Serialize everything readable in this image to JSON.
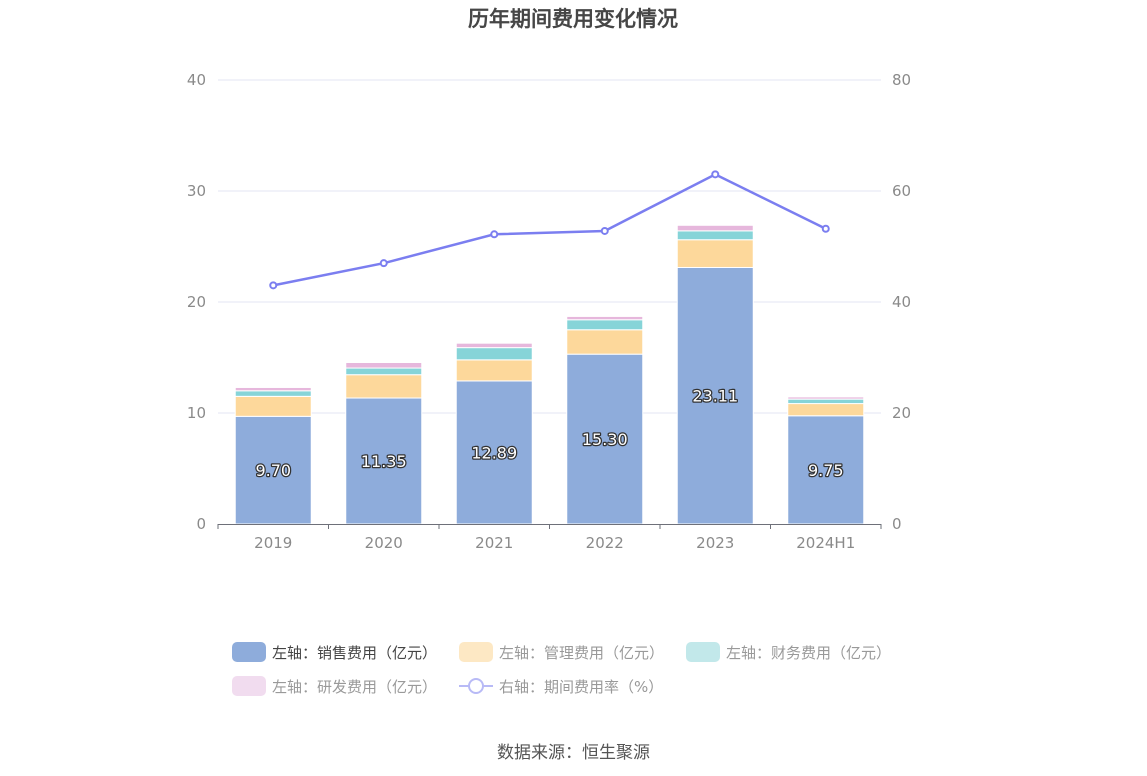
{
  "chart_data": {
    "type": "bar",
    "title": "历年期间费用变化情况",
    "categories": [
      "2019",
      "2020",
      "2021",
      "2022",
      "2023",
      "2024H1"
    ],
    "stacked": true,
    "y_left": {
      "ylim": [
        0,
        40
      ],
      "ticks": [
        "0",
        "10",
        "20",
        "30",
        "40"
      ]
    },
    "y_right": {
      "ylim": [
        0,
        80
      ],
      "ticks": [
        "0",
        "20",
        "40",
        "60",
        "80"
      ]
    },
    "grid": true,
    "legend_position": "bottom",
    "series": [
      {
        "name": "左轴：销售费用（亿元）",
        "type": "bar",
        "axis": "left",
        "color": "#8eacdb",
        "values": [
          9.7,
          11.35,
          12.89,
          15.3,
          23.11,
          9.75
        ],
        "labels": [
          "9.70",
          "11.35",
          "12.89",
          "15.30",
          "23.11",
          "9.75"
        ]
      },
      {
        "name": "左轴：管理费用（亿元）",
        "type": "bar",
        "axis": "left",
        "color": "#fdd89b",
        "values": [
          1.8,
          2.1,
          1.9,
          2.2,
          2.5,
          1.1
        ]
      },
      {
        "name": "左轴：财务费用（亿元）",
        "type": "bar",
        "axis": "left",
        "color": "#86d4d8",
        "values": [
          0.5,
          0.6,
          1.1,
          0.9,
          0.8,
          0.4
        ]
      },
      {
        "name": "左轴：研发费用（亿元）",
        "type": "bar",
        "axis": "left",
        "color": "#e6b7dc",
        "values": [
          0.3,
          0.5,
          0.4,
          0.3,
          0.5,
          0.2
        ]
      },
      {
        "name": "右轴：期间费用率（%）",
        "type": "line",
        "axis": "right",
        "color": "#7b7ef0",
        "values": [
          43.0,
          47.0,
          52.2,
          52.8,
          63.0,
          53.2
        ]
      }
    ]
  },
  "source_text": "数据来源：恒生聚源"
}
